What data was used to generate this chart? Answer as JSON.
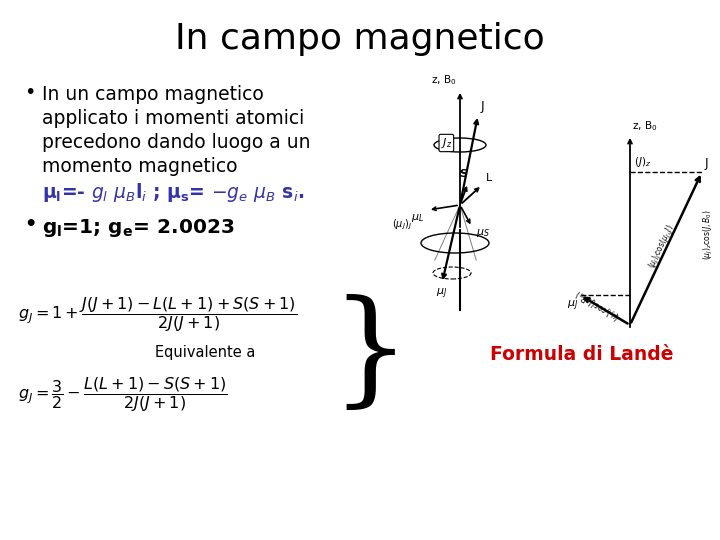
{
  "title": "In campo magnetico",
  "title_fontsize": 26,
  "bg_color": "#ffffff",
  "text_color": "#000000",
  "blue_color": "#3333aa",
  "red_color": "#cc0000",
  "bullet1_lines": [
    "In un campo magnetico",
    "applicato i momenti atomici",
    "precedono dando luogo a un",
    "momento magnetico"
  ],
  "bullet1_formula": "\\u03bcl=- gl \\u03bcBli ; \\u03bcs= -ge \\u03bcB si.",
  "bullet2": "gl=1; ge= 2.0023",
  "equiv_label": "Equivalente a",
  "formula_di_lande": "Formula di Landè"
}
